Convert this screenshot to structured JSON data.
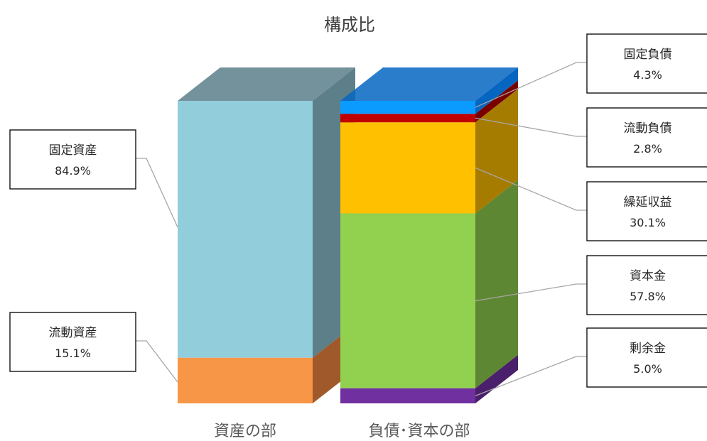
{
  "chart_data": {
    "type": "bar",
    "title": "構成比",
    "categories": [
      "資産の部",
      "負債･資本の部"
    ],
    "series": [
      {
        "name": "流動資産",
        "label": "15.1%",
        "values": [
          15.1,
          0
        ],
        "color": "#F79646",
        "side_color": "#A0592A"
      },
      {
        "name": "固定資産",
        "label": "84.9%",
        "values": [
          84.9,
          0
        ],
        "color": "#92CDDC",
        "side_color": "#5C7F89"
      },
      {
        "name": "剰余金",
        "label": "5.0%",
        "values": [
          0,
          5.0
        ],
        "color": "#7030A0",
        "side_color": "#4A1F6B"
      },
      {
        "name": "資本金",
        "label": "57.8%",
        "values": [
          0,
          57.8
        ],
        "color": "#92D050",
        "side_color": "#5E8733"
      },
      {
        "name": "繰延収益",
        "label": "30.1%",
        "values": [
          0,
          30.1
        ],
        "color": "#FFC000",
        "side_color": "#A67C00"
      },
      {
        "name": "流動負債",
        "label": "2.8%",
        "values": [
          0,
          2.8
        ],
        "color": "#C00000",
        "side_color": "#7A0000"
      },
      {
        "name": "固定負債",
        "label": "4.3%",
        "values": [
          0,
          4.3
        ],
        "color": "#0B9BFF",
        "side_color": "#0566C2"
      }
    ],
    "stacked": true,
    "ylim": [
      0,
      100
    ],
    "grid": false,
    "legend": "none",
    "three_d": true
  }
}
